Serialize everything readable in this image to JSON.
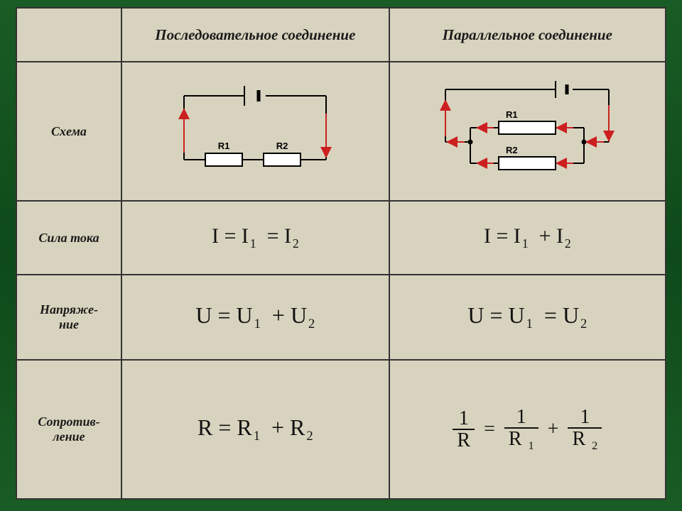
{
  "columns": {
    "header_left": "Последовательное соединение",
    "header_right": "Параллельное соединение"
  },
  "rows": {
    "schema": "Схема",
    "current": "Сила тока",
    "voltage": "Напряже-\nние",
    "resistance": "Сопротив-\nление"
  },
  "labels": {
    "R1": "R1",
    "R2": "R2"
  },
  "formulas": {
    "current_series": {
      "lhs": "I",
      "op1": "=",
      "r1": "I",
      "s1": "1",
      "op2": "=",
      "r2": "I",
      "s2": "2"
    },
    "current_parallel": {
      "lhs": "I",
      "op1": "=",
      "r1": "I",
      "s1": "1",
      "op2": "+",
      "r2": "I",
      "s2": "2"
    },
    "voltage_series": {
      "lhs": "U",
      "op1": "=",
      "r1": "U",
      "s1": "1",
      "op2": "+",
      "r2": "U",
      "s2": "2"
    },
    "voltage_parallel": {
      "lhs": "U",
      "op1": "=",
      "r1": "U",
      "s1": "1",
      "op2": "=",
      "r2": "U",
      "s2": "2"
    },
    "resistance_series": {
      "lhs": "R",
      "op1": "=",
      "r1": "R",
      "s1": "1",
      "op2": "+",
      "r2": "R",
      "s2": "2"
    },
    "resistance_parallel": {
      "n0": "1",
      "d0": "R",
      "n1": "1",
      "d1": "R",
      "ds1": "1",
      "n2": "1",
      "d2": "R",
      "ds2": "2",
      "eq": "=",
      "plus": "+"
    }
  },
  "styling": {
    "table_bg": "#d8d3be",
    "border_color": "#333333",
    "text_color": "#1a1a1a",
    "formula_color": "#111111",
    "wire_color": "#000000",
    "arrow_color": "#cc2020",
    "resistor_fill": "#ffffff",
    "label_font": "Arial",
    "formula_font": "Times New Roman",
    "header_fontsize": 21,
    "row_label_fontsize": 18,
    "formula_fontsize": 30,
    "resistance_formula_fontsize": 30,
    "circuit_label_fontsize": 13,
    "wire_stroke_width": 2,
    "arrow_stroke_width": 2,
    "page_bg_gradient": [
      "#1a5c25",
      "#0e4a1a",
      "#1a5c25"
    ]
  }
}
